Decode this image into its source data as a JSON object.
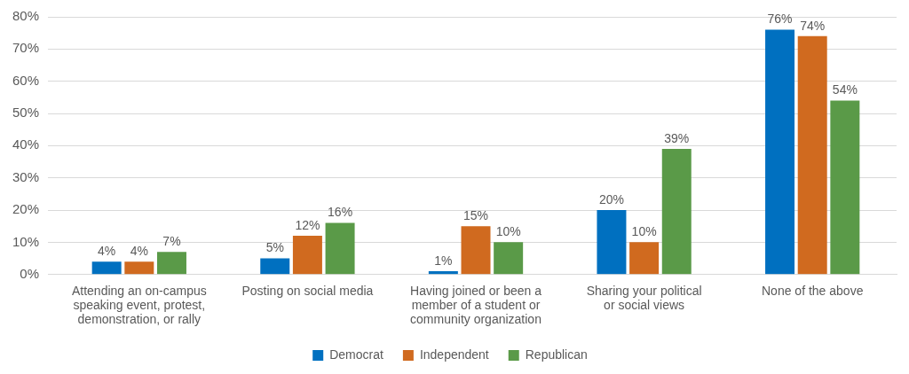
{
  "chart_data": {
    "type": "bar",
    "categories": [
      "Attending an on-campus speaking event, protest, demonstration, or rally",
      "Posting on social media",
      "Having joined or been a member of a student or community organization",
      "Sharing your political or social views",
      "None of the above"
    ],
    "series": [
      {
        "name": "Democrat",
        "color": "#0070c0",
        "values": [
          4,
          5,
          1,
          20,
          76
        ],
        "value_labels": [
          "4%",
          "5%",
          "1%",
          "20%",
          "76%"
        ]
      },
      {
        "name": "Independent",
        "color": "#d06a1f",
        "values": [
          4,
          12,
          15,
          10,
          74
        ],
        "value_labels": [
          "4%",
          "12%",
          "15%",
          "10%",
          "74%"
        ]
      },
      {
        "name": "Republican",
        "color": "#5a9a48",
        "values": [
          7,
          16,
          10,
          39,
          54
        ],
        "value_labels": [
          "7%",
          "16%",
          "10%",
          "39%",
          "54%"
        ]
      }
    ],
    "ylim": [
      0,
      80
    ],
    "yticks": [
      {
        "value": 0,
        "label": "0%"
      },
      {
        "value": 10,
        "label": "10%"
      },
      {
        "value": 20,
        "label": "20%"
      },
      {
        "value": 30,
        "label": "30%"
      },
      {
        "value": 40,
        "label": "40%"
      },
      {
        "value": 50,
        "label": "50%"
      },
      {
        "value": 60,
        "label": "60%"
      },
      {
        "value": 70,
        "label": "70%"
      },
      {
        "value": 80,
        "label": "80%"
      }
    ],
    "grid": true,
    "legend": "bottom",
    "data_labels": true
  }
}
